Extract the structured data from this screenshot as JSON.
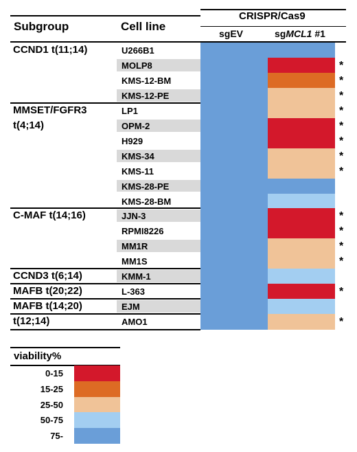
{
  "header": {
    "subgroup": "Subgroup",
    "cell_line": "Cell line",
    "crispr": "CRISPR/Cas9",
    "sgev": "sgEV",
    "sgmcl1_prefix": "sg",
    "sgmcl1_gene": "MCL1",
    "sgmcl1_suffix": " #1"
  },
  "colors": {
    "0-15": "#d3182b",
    "15-25": "#dd6b24",
    "25-50": "#f0c398",
    "50-75": "#a3cef1",
    "75-": "#6a9ed8",
    "row_shade": "#d9d9d9"
  },
  "rows": [
    {
      "subgroup": "CCND1 t(11;14)",
      "cell": "U266B1",
      "sgev": "75-",
      "mcl1": "75-",
      "sig": ""
    },
    {
      "subgroup": "",
      "cell": "MOLP8",
      "sgev": "75-",
      "mcl1": "0-15",
      "sig": "*"
    },
    {
      "subgroup": "",
      "cell": "KMS-12-BM",
      "sgev": "75-",
      "mcl1": "15-25",
      "sig": "*"
    },
    {
      "subgroup": "",
      "cell": "KMS-12-PE",
      "sgev": "75-",
      "mcl1": "25-50",
      "sig": "*"
    },
    {
      "subgroup": "MMSET/FGFR3",
      "cell": "LP1",
      "sgev": "75-",
      "mcl1": "25-50",
      "sig": "*"
    },
    {
      "subgroup": "t(4;14)",
      "cell": "OPM-2",
      "sgev": "75-",
      "mcl1": "0-15",
      "sig": "*"
    },
    {
      "subgroup": "",
      "cell": "H929",
      "sgev": "75-",
      "mcl1": "0-15",
      "sig": "*"
    },
    {
      "subgroup": "",
      "cell": "KMS-34",
      "sgev": "75-",
      "mcl1": "25-50",
      "sig": "*"
    },
    {
      "subgroup": "",
      "cell": "KMS-11",
      "sgev": "75-",
      "mcl1": "25-50",
      "sig": "*"
    },
    {
      "subgroup": "",
      "cell": "KMS-28-PE",
      "sgev": "75-",
      "mcl1": "75-",
      "sig": ""
    },
    {
      "subgroup": "",
      "cell": "KMS-28-BM",
      "sgev": "75-",
      "mcl1": "50-75",
      "sig": ""
    },
    {
      "subgroup": "C-MAF t(14;16)",
      "cell": "JJN-3",
      "sgev": "75-",
      "mcl1": "0-15",
      "sig": "*"
    },
    {
      "subgroup": "",
      "cell": "RPMI8226",
      "sgev": "75-",
      "mcl1": "0-15",
      "sig": "*"
    },
    {
      "subgroup": "",
      "cell": "MM1R",
      "sgev": "75-",
      "mcl1": "25-50",
      "sig": "*"
    },
    {
      "subgroup": "",
      "cell": "MM1S",
      "sgev": "75-",
      "mcl1": "25-50",
      "sig": "*"
    },
    {
      "subgroup": "CCND3 t(6;14)",
      "cell": "KMM-1",
      "sgev": "75-",
      "mcl1": "50-75",
      "sig": ""
    },
    {
      "subgroup": "MAFB t(20;22)",
      "cell": "L-363",
      "sgev": "75-",
      "mcl1": "0-15",
      "sig": "*"
    },
    {
      "subgroup": "MAFB t(14;20)",
      "cell": "EJM",
      "sgev": "75-",
      "mcl1": "50-75",
      "sig": ""
    },
    {
      "subgroup": "t(12;14)",
      "cell": "AMO1",
      "sgev": "75-",
      "mcl1": "25-50",
      "sig": "*"
    }
  ],
  "legend": {
    "title": "viability%",
    "items": [
      {
        "label": "0-15",
        "key": "0-15"
      },
      {
        "label": "15-25",
        "key": "15-25"
      },
      {
        "label": "25-50",
        "key": "25-50"
      },
      {
        "label": "50-75",
        "key": "50-75"
      },
      {
        "label": "75-",
        "key": "75-"
      }
    ]
  }
}
